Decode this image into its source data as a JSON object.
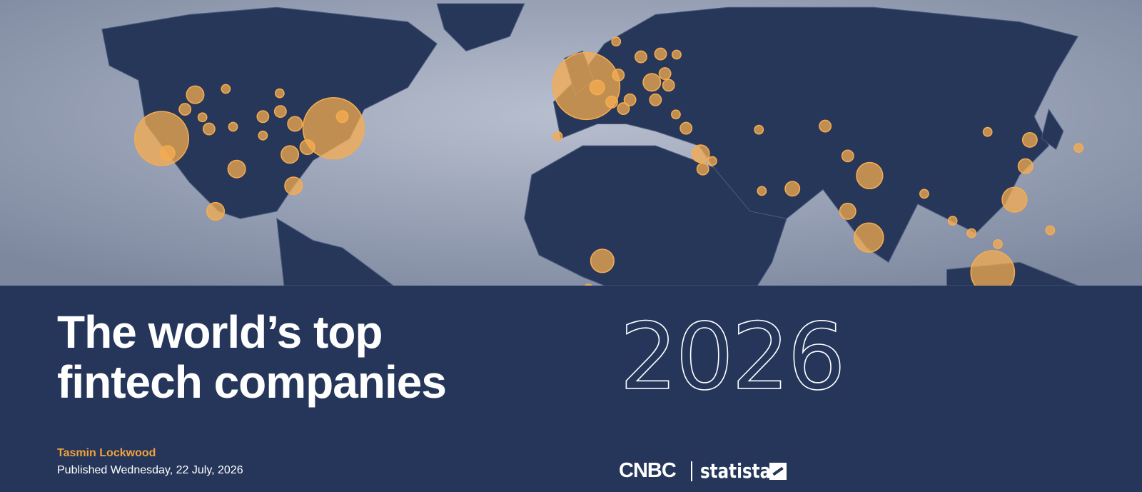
{
  "header": {
    "title": [
      "The world’s top",
      "fintech companies"
    ],
    "year": "2026"
  },
  "byline": {
    "author": "Tasmin Lockwood",
    "published": "Published Wednesday, 22 July, 2026"
  },
  "logos": {
    "partner1": "CNBC",
    "partner2": "statista"
  }
}
